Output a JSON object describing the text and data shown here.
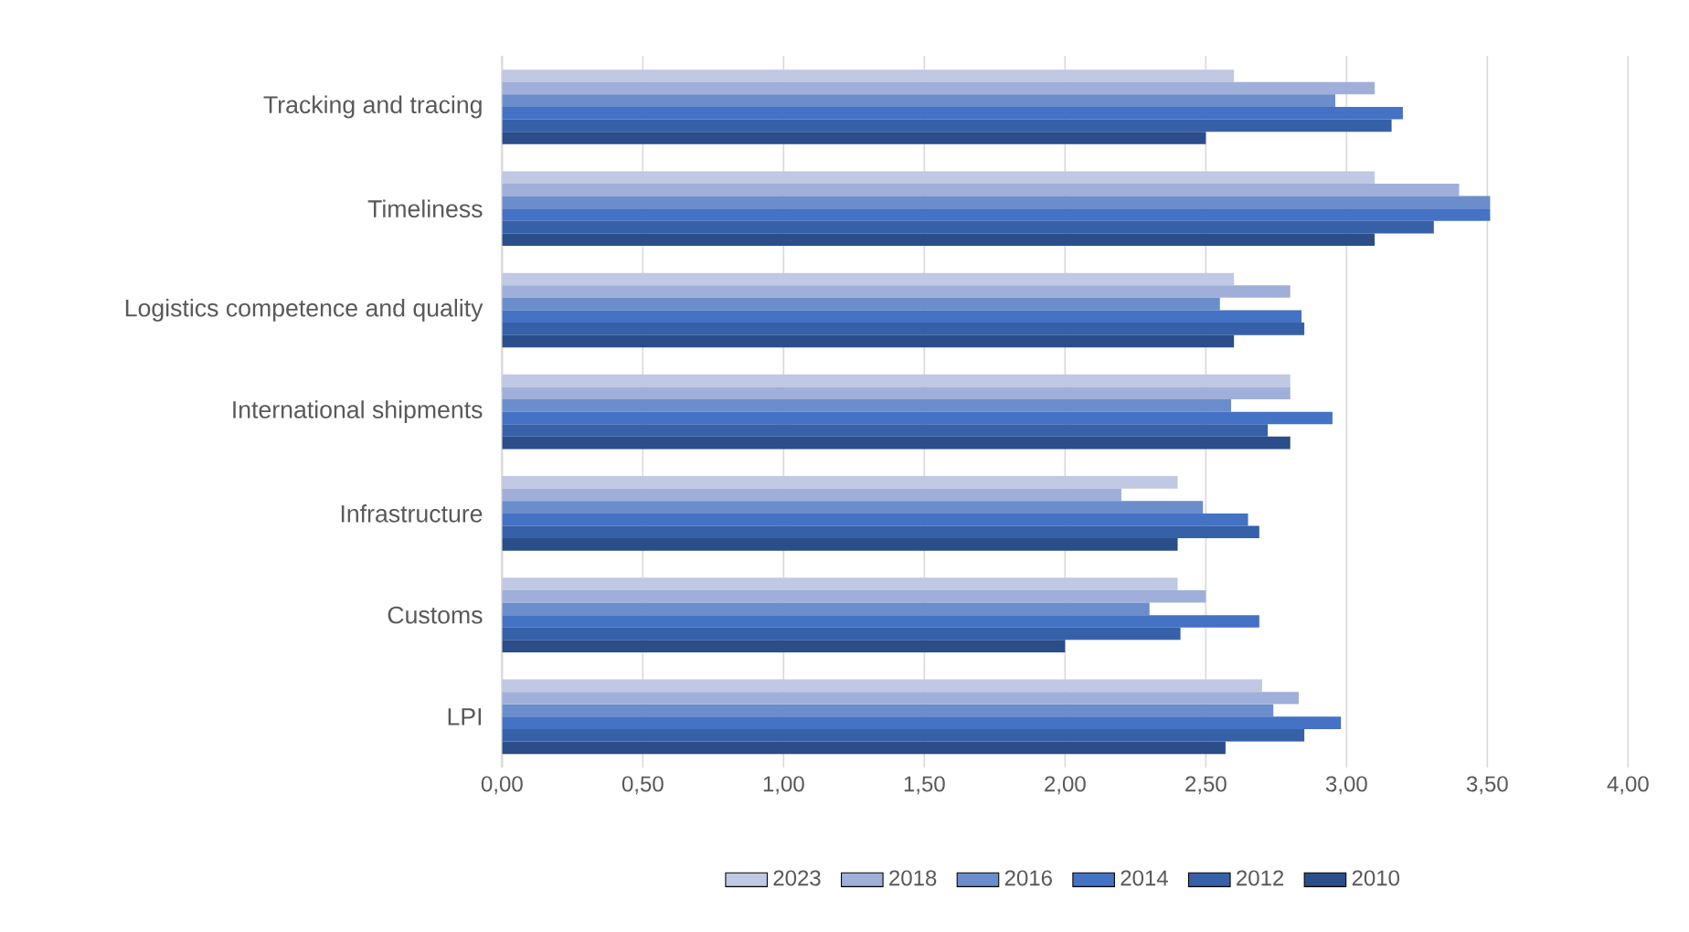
{
  "chart_data": {
    "type": "bar",
    "orientation": "horizontal",
    "categories": [
      "Tracking and tracing",
      "Timeliness",
      "Logistics competence and quality",
      "International shipments",
      "Infrastructure",
      "Customs",
      "LPI"
    ],
    "series": [
      {
        "name": "2023",
        "color": "#c0c8e3",
        "values": [
          2.6,
          3.1,
          2.6,
          2.8,
          2.4,
          2.4,
          2.7
        ]
      },
      {
        "name": "2018",
        "color": "#9fafd9",
        "values": [
          3.1,
          3.4,
          2.8,
          2.8,
          2.2,
          2.5,
          2.83
        ]
      },
      {
        "name": "2016",
        "color": "#6c8dcb",
        "values": [
          2.96,
          3.51,
          2.55,
          2.59,
          2.49,
          2.3,
          2.74
        ]
      },
      {
        "name": "2014",
        "color": "#4472c4",
        "values": [
          3.2,
          3.51,
          2.84,
          2.95,
          2.65,
          2.69,
          2.98
        ]
      },
      {
        "name": "2012",
        "color": "#3660a8",
        "values": [
          3.16,
          3.31,
          2.85,
          2.72,
          2.69,
          2.41,
          2.85
        ]
      },
      {
        "name": "2010",
        "color": "#2b4d8a",
        "values": [
          2.5,
          3.1,
          2.6,
          2.8,
          2.4,
          2.0,
          2.57
        ]
      }
    ],
    "xlim": [
      0,
      4
    ],
    "xticks": [
      {
        "value": 0,
        "label": "0,00"
      },
      {
        "value": 0.5,
        "label": "0,50"
      },
      {
        "value": 1,
        "label": "1,00"
      },
      {
        "value": 1.5,
        "label": "1,50"
      },
      {
        "value": 2,
        "label": "2,00"
      },
      {
        "value": 2.5,
        "label": "2,50"
      },
      {
        "value": 3,
        "label": "3,00"
      },
      {
        "value": 3.5,
        "label": "3,50"
      },
      {
        "value": 4,
        "label": "4,00"
      }
    ],
    "grid": "x",
    "legend": "bottom"
  }
}
